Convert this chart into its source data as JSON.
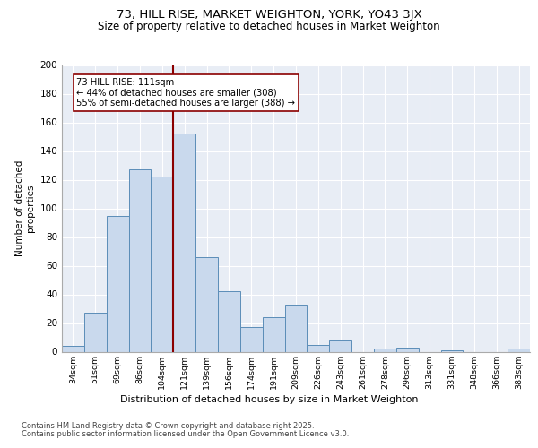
{
  "title1": "73, HILL RISE, MARKET WEIGHTON, YORK, YO43 3JX",
  "title2": "Size of property relative to detached houses in Market Weighton",
  "xlabel": "Distribution of detached houses by size in Market Weighton",
  "ylabel": "Number of detached\nproperties",
  "categories": [
    "34sqm",
    "51sqm",
    "69sqm",
    "86sqm",
    "104sqm",
    "121sqm",
    "139sqm",
    "156sqm",
    "174sqm",
    "191sqm",
    "209sqm",
    "226sqm",
    "243sqm",
    "261sqm",
    "278sqm",
    "296sqm",
    "313sqm",
    "331sqm",
    "348sqm",
    "366sqm",
    "383sqm"
  ],
  "values": [
    4,
    27,
    95,
    127,
    122,
    152,
    66,
    42,
    17,
    24,
    33,
    5,
    8,
    0,
    2,
    3,
    0,
    1,
    0,
    0,
    2
  ],
  "bar_color": "#c9d9ed",
  "bar_edge_color": "#5b8db8",
  "bar_linewidth": 0.7,
  "vline_index": 4.5,
  "vline_color": "#8b0000",
  "annotation_text": "73 HILL RISE: 111sqm\n← 44% of detached houses are smaller (308)\n55% of semi-detached houses are larger (388) →",
  "ylim": [
    0,
    200
  ],
  "yticks": [
    0,
    20,
    40,
    60,
    80,
    100,
    120,
    140,
    160,
    180,
    200
  ],
  "plot_bg_color": "#e8edf5",
  "grid_color": "#ffffff",
  "footer1": "Contains HM Land Registry data © Crown copyright and database right 2025.",
  "footer2": "Contains public sector information licensed under the Open Government Licence v3.0."
}
